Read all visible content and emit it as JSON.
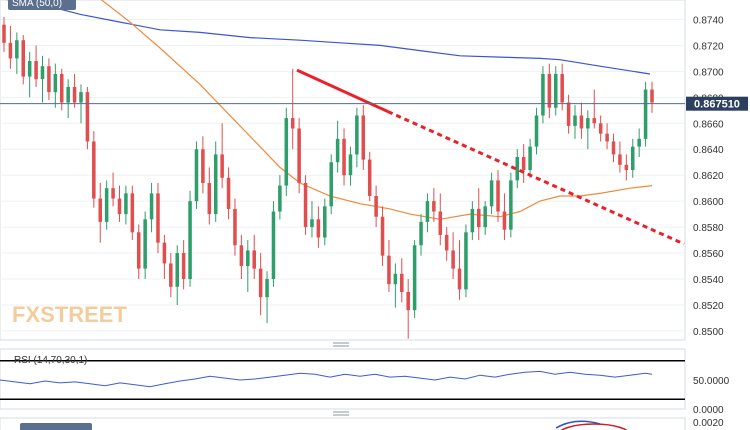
{
  "chart_data": [
    {
      "type": "candlestick",
      "indicator_label": "SMA (50,0)",
      "watermark": "FXSTREET",
      "current_price": {
        "label": "0.867510",
        "value": 0.86751
      },
      "y_ticks": [
        "0.8740",
        "0.8720",
        "0.8700",
        "0.8680",
        "0.8660",
        "0.8640",
        "0.8620",
        "0.8600",
        "0.8580",
        "0.8560",
        "0.8540",
        "0.8520",
        "0.8500"
      ],
      "ylim": [
        0.8493,
        0.8755
      ],
      "candles": [
        [
          0.8736,
          0.8742,
          0.8715,
          0.8722
        ],
        [
          0.8722,
          0.8735,
          0.8702,
          0.871
        ],
        [
          0.871,
          0.873,
          0.8698,
          0.8724
        ],
        [
          0.8724,
          0.8728,
          0.869,
          0.8696
        ],
        [
          0.8696,
          0.8715,
          0.868,
          0.8708
        ],
        [
          0.8708,
          0.872,
          0.8688,
          0.8694
        ],
        [
          0.8694,
          0.8712,
          0.8676,
          0.8704
        ],
        [
          0.8704,
          0.871,
          0.8678,
          0.8684
        ],
        [
          0.8684,
          0.8706,
          0.8672,
          0.8698
        ],
        [
          0.8698,
          0.8702,
          0.867,
          0.8676
        ],
        [
          0.8676,
          0.8694,
          0.8664,
          0.8688
        ],
        [
          0.8688,
          0.8698,
          0.8672,
          0.8676
        ],
        [
          0.8676,
          0.869,
          0.866,
          0.8684
        ],
        [
          0.8684,
          0.8688,
          0.864,
          0.8646
        ],
        [
          0.8646,
          0.8654,
          0.8595,
          0.8602
        ],
        [
          0.8602,
          0.8614,
          0.8568,
          0.8584
        ],
        [
          0.8584,
          0.8616,
          0.8578,
          0.861
        ],
        [
          0.861,
          0.8622,
          0.8596,
          0.8602
        ],
        [
          0.8602,
          0.8612,
          0.8584,
          0.859
        ],
        [
          0.859,
          0.8612,
          0.8582,
          0.8606
        ],
        [
          0.8606,
          0.8612,
          0.857,
          0.8576
        ],
        [
          0.8576,
          0.8582,
          0.854,
          0.8548
        ],
        [
          0.8548,
          0.8592,
          0.854,
          0.8586
        ],
        [
          0.8586,
          0.8614,
          0.8576,
          0.8606
        ],
        [
          0.8606,
          0.8614,
          0.856,
          0.8568
        ],
        [
          0.8568,
          0.8574,
          0.854,
          0.8552
        ],
        [
          0.8552,
          0.856,
          0.8526,
          0.8534
        ],
        [
          0.8534,
          0.8566,
          0.852,
          0.856
        ],
        [
          0.856,
          0.857,
          0.8532,
          0.854
        ],
        [
          0.854,
          0.8608,
          0.8534,
          0.86
        ],
        [
          0.86,
          0.8646,
          0.8594,
          0.864
        ],
        [
          0.864,
          0.865,
          0.8606,
          0.8614
        ],
        [
          0.8614,
          0.8626,
          0.8582,
          0.859
        ],
        [
          0.859,
          0.8646,
          0.8584,
          0.8636
        ],
        [
          0.8636,
          0.866,
          0.861,
          0.8618
        ],
        [
          0.8618,
          0.8626,
          0.8586,
          0.8594
        ],
        [
          0.8594,
          0.8602,
          0.8558,
          0.8566
        ],
        [
          0.8566,
          0.8574,
          0.854,
          0.855
        ],
        [
          0.855,
          0.857,
          0.853,
          0.8562
        ],
        [
          0.8562,
          0.8574,
          0.854,
          0.8548
        ],
        [
          0.8548,
          0.856,
          0.8512,
          0.8526
        ],
        [
          0.8526,
          0.8546,
          0.8506,
          0.854
        ],
        [
          0.854,
          0.86,
          0.8534,
          0.8592
        ],
        [
          0.8592,
          0.862,
          0.8586,
          0.8612
        ],
        [
          0.8612,
          0.8672,
          0.8604,
          0.8664
        ],
        [
          0.8664,
          0.8702,
          0.864,
          0.8656
        ],
        [
          0.8656,
          0.8664,
          0.8606,
          0.8614
        ],
        [
          0.8614,
          0.862,
          0.8574,
          0.858
        ],
        [
          0.858,
          0.86,
          0.8572,
          0.8586
        ],
        [
          0.8586,
          0.8596,
          0.8564,
          0.8572
        ],
        [
          0.8572,
          0.8602,
          0.8566,
          0.8596
        ],
        [
          0.8596,
          0.8636,
          0.859,
          0.863
        ],
        [
          0.863,
          0.8662,
          0.8622,
          0.8648
        ],
        [
          0.8648,
          0.8656,
          0.8612,
          0.862
        ],
        [
          0.862,
          0.8642,
          0.8612,
          0.8636
        ],
        [
          0.8636,
          0.8672,
          0.8626,
          0.8666
        ],
        [
          0.8666,
          0.8674,
          0.8624,
          0.8632
        ],
        [
          0.8632,
          0.8638,
          0.86,
          0.8604
        ],
        [
          0.8604,
          0.8612,
          0.858,
          0.8588
        ],
        [
          0.8588,
          0.8596,
          0.855,
          0.8558
        ],
        [
          0.8558,
          0.857,
          0.853,
          0.8536
        ],
        [
          0.8536,
          0.8552,
          0.8518,
          0.8544
        ],
        [
          0.8544,
          0.8556,
          0.8522,
          0.853
        ],
        [
          0.853,
          0.854,
          0.8494,
          0.8516
        ],
        [
          0.8516,
          0.857,
          0.851,
          0.8566
        ],
        [
          0.8566,
          0.859,
          0.8558,
          0.8584
        ],
        [
          0.8584,
          0.8606,
          0.8576,
          0.86
        ],
        [
          0.86,
          0.861,
          0.8584,
          0.8592
        ],
        [
          0.8592,
          0.8606,
          0.8566,
          0.8574
        ],
        [
          0.8574,
          0.858,
          0.8554,
          0.8562
        ],
        [
          0.8562,
          0.8576,
          0.854,
          0.8548
        ],
        [
          0.8548,
          0.857,
          0.8524,
          0.8532
        ],
        [
          0.8532,
          0.8582,
          0.8526,
          0.8576
        ],
        [
          0.8576,
          0.86,
          0.857,
          0.8594
        ],
        [
          0.8594,
          0.861,
          0.857,
          0.858
        ],
        [
          0.858,
          0.86,
          0.8574,
          0.8596
        ],
        [
          0.8596,
          0.8622,
          0.859,
          0.8616
        ],
        [
          0.8616,
          0.8624,
          0.8584,
          0.8592
        ],
        [
          0.8592,
          0.8606,
          0.857,
          0.8578
        ],
        [
          0.8578,
          0.8622,
          0.8572,
          0.8616
        ],
        [
          0.8616,
          0.864,
          0.861,
          0.8634
        ],
        [
          0.8634,
          0.8644,
          0.8614,
          0.8624
        ],
        [
          0.8624,
          0.8648,
          0.8618,
          0.8642
        ],
        [
          0.8642,
          0.8672,
          0.8636,
          0.8666
        ],
        [
          0.8666,
          0.8704,
          0.866,
          0.8698
        ],
        [
          0.8698,
          0.8706,
          0.8664,
          0.8672
        ],
        [
          0.8672,
          0.8704,
          0.8666,
          0.8698
        ],
        [
          0.8698,
          0.8706,
          0.867,
          0.8676
        ],
        [
          0.8676,
          0.8682,
          0.8652,
          0.8658
        ],
        [
          0.8658,
          0.8674,
          0.8648,
          0.8666
        ],
        [
          0.8666,
          0.8676,
          0.8648,
          0.8656
        ],
        [
          0.8656,
          0.867,
          0.864,
          0.8664
        ],
        [
          0.8664,
          0.8686,
          0.8656,
          0.866
        ],
        [
          0.866,
          0.8666,
          0.8646,
          0.8652
        ],
        [
          0.8652,
          0.866,
          0.864,
          0.8646
        ],
        [
          0.8646,
          0.8652,
          0.863,
          0.8636
        ],
        [
          0.8636,
          0.8646,
          0.8622,
          0.8628
        ],
        [
          0.8628,
          0.8636,
          0.8616,
          0.8624
        ],
        [
          0.8624,
          0.8648,
          0.8618,
          0.8642
        ],
        [
          0.8642,
          0.8656,
          0.8634,
          0.8648
        ],
        [
          0.8648,
          0.8692,
          0.8642,
          0.8686
        ],
        [
          0.8686,
          0.8692,
          0.8668,
          0.8676
        ]
      ],
      "sma": [
        [
          0,
          0.8756
        ],
        [
          40,
          0.8752
        ],
        [
          80,
          0.8744
        ],
        [
          120,
          0.8738
        ],
        [
          160,
          0.8732
        ],
        [
          200,
          0.873
        ],
        [
          250,
          0.8726
        ],
        [
          300,
          0.8724
        ],
        [
          340,
          0.8722
        ],
        [
          380,
          0.872
        ],
        [
          420,
          0.8716
        ],
        [
          460,
          0.8712
        ],
        [
          500,
          0.8711
        ],
        [
          540,
          0.871
        ],
        [
          560,
          0.8709
        ],
        [
          600,
          0.8704
        ],
        [
          650,
          0.8698
        ]
      ],
      "ma_orange": [
        [
          100,
          0.8756
        ],
        [
          130,
          0.8738
        ],
        [
          160,
          0.8718
        ],
        [
          200,
          0.869
        ],
        [
          240,
          0.8658
        ],
        [
          280,
          0.8626
        ],
        [
          300,
          0.8614
        ],
        [
          330,
          0.8604
        ],
        [
          360,
          0.8598
        ],
        [
          390,
          0.8594
        ],
        [
          410,
          0.859
        ],
        [
          440,
          0.8586
        ],
        [
          470,
          0.859
        ],
        [
          500,
          0.8588
        ],
        [
          520,
          0.8592
        ],
        [
          540,
          0.86
        ],
        [
          560,
          0.8604
        ],
        [
          580,
          0.8604
        ],
        [
          600,
          0.8606
        ],
        [
          630,
          0.861
        ],
        [
          652,
          0.8612
        ]
      ],
      "trendline_solid": [
        [
          297,
          0.8701
        ],
        [
          388,
          0.8669
        ]
      ],
      "trendline_dotted": [
        [
          388,
          0.8669
        ],
        [
          684,
          0.8567
        ]
      ]
    },
    {
      "type": "line",
      "indicator_label": "RSI (14,70,30,1)",
      "y_ticks": [
        "50.0000"
      ],
      "levels": [
        70,
        30
      ],
      "ylim": [
        25,
        75
      ],
      "values": [
        [
          0,
          50
        ],
        [
          15,
          48
        ],
        [
          30,
          46
        ],
        [
          45,
          49
        ],
        [
          60,
          47
        ],
        [
          75,
          48
        ],
        [
          90,
          46
        ],
        [
          105,
          44
        ],
        [
          120,
          47
        ],
        [
          135,
          45
        ],
        [
          150,
          43
        ],
        [
          165,
          46
        ],
        [
          180,
          49
        ],
        [
          195,
          51
        ],
        [
          210,
          54
        ],
        [
          225,
          52
        ],
        [
          240,
          50
        ],
        [
          255,
          51
        ],
        [
          270,
          53
        ],
        [
          285,
          55
        ],
        [
          300,
          57
        ],
        [
          315,
          56
        ],
        [
          330,
          53
        ],
        [
          345,
          56
        ],
        [
          360,
          54
        ],
        [
          375,
          56
        ],
        [
          390,
          53
        ],
        [
          405,
          54
        ],
        [
          420,
          52
        ],
        [
          435,
          50
        ],
        [
          450,
          53
        ],
        [
          465,
          51
        ],
        [
          480,
          55
        ],
        [
          495,
          53
        ],
        [
          510,
          56
        ],
        [
          525,
          58
        ],
        [
          540,
          59
        ],
        [
          555,
          56
        ],
        [
          570,
          58
        ],
        [
          585,
          56
        ],
        [
          600,
          55
        ],
        [
          615,
          53
        ],
        [
          630,
          55
        ],
        [
          645,
          57
        ],
        [
          652,
          56
        ]
      ]
    },
    {
      "type": "line",
      "y_ticks": [
        "0.0020",
        "0.0000"
      ]
    }
  ]
}
